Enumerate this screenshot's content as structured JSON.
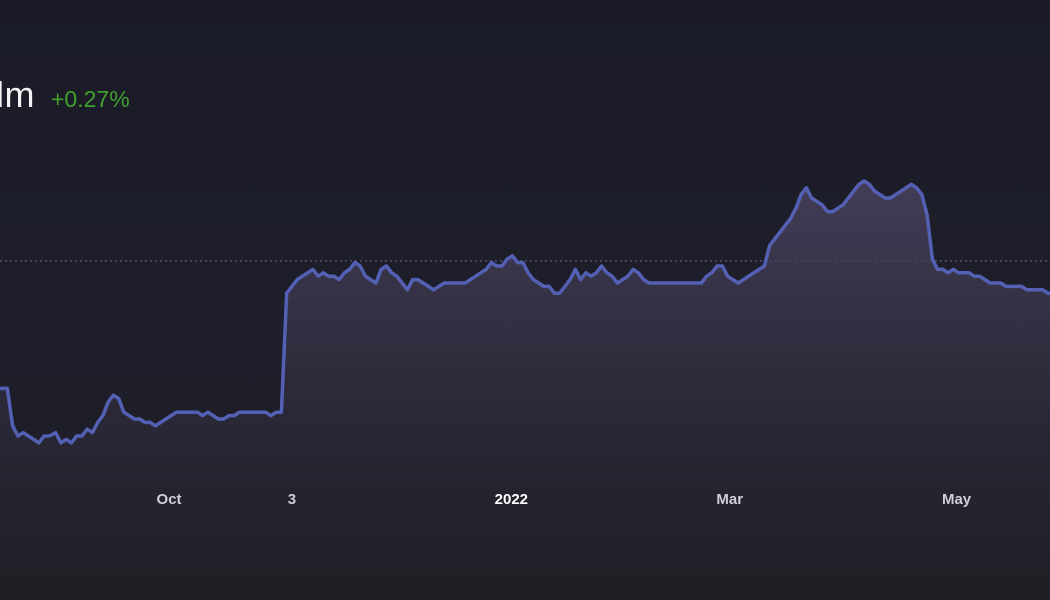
{
  "header": {
    "value_text": "lm",
    "change_text": "+0.27%"
  },
  "colors": {
    "line": "#5460b4",
    "area_top": "#4a4360",
    "positive": "#3fa12c",
    "reference_line": "#6a6a90"
  },
  "chart_data": {
    "type": "area",
    "title": "",
    "xlabel": "",
    "ylabel": "",
    "x_tick_labels": [
      "Oct",
      "3",
      "2022",
      "Mar",
      "May"
    ],
    "emphasized_tick": "2022",
    "ylim": [
      0,
      100
    ],
    "reference_line_value": 61.5,
    "reference_line_style": "dotted",
    "grid": false,
    "x": [
      0,
      0.7,
      1.2,
      1.7,
      2.2,
      2.7,
      3.2,
      3.7,
      4.2,
      4.7,
      5.3,
      5.8,
      6.3,
      6.8,
      7.3,
      7.8,
      8.3,
      8.8,
      9.3,
      9.8,
      10.3,
      10.8,
      11.3,
      11.8,
      12.3,
      12.8,
      13.3,
      13.8,
      14.3,
      14.8,
      15.3,
      15.8,
      16.3,
      16.8,
      17.3,
      17.8,
      18.3,
      18.8,
      19.3,
      19.8,
      20.3,
      20.8,
      21.3,
      21.8,
      22.3,
      22.8,
      23.3,
      23.8,
      24.3,
      24.8,
      25.3,
      25.8,
      26.3,
      26.8,
      27.3,
      27.8,
      28.3,
      28.8,
      29.3,
      29.8,
      30.3,
      30.8,
      31.3,
      31.8,
      32.3,
      32.8,
      33.3,
      33.8,
      34.3,
      34.8,
      35.3,
      35.8,
      36.3,
      36.8,
      37.3,
      37.8,
      38.3,
      38.8,
      39.3,
      39.8,
      40.3,
      40.8,
      41.3,
      41.8,
      42.3,
      42.8,
      43.3,
      43.8,
      44.3,
      44.8,
      45.3,
      45.8,
      46.3,
      46.8,
      47.3,
      47.8,
      48.3,
      48.8,
      49.3,
      49.8,
      50.3,
      50.8,
      51.3,
      51.8,
      52.3,
      52.8,
      53.3,
      53.8,
      54.3,
      54.8,
      55.3,
      55.8,
      56.3,
      56.8,
      57.3,
      57.8,
      58.3,
      58.8,
      59.3,
      59.8,
      60.3,
      60.8,
      61.3,
      61.8,
      62.3,
      62.8,
      63.3,
      63.8,
      64.3,
      64.8,
      65.3,
      65.8,
      66.3,
      66.8,
      67.3,
      67.8,
      68.3,
      68.8,
      69.3,
      69.8,
      70.3,
      70.8,
      71.3,
      71.8,
      72.3,
      72.8,
      73.3,
      73.8,
      74.3,
      74.8,
      75.3,
      75.8,
      76.3,
      76.8,
      77.3,
      77.8,
      78.3,
      78.8,
      79.3,
      79.8,
      80.3,
      80.8,
      81.3,
      81.8,
      82.3,
      82.8,
      83.3,
      83.8,
      84.3,
      84.8,
      85.3,
      85.8,
      86.3,
      86.8,
      87.3,
      87.8,
      88.3,
      88.8,
      89.3,
      89.8,
      90.3,
      90.8,
      91.3,
      91.8,
      92.3,
      92.8,
      93.3,
      93.8,
      94.3,
      94.8,
      95.3,
      95.8,
      96.3,
      96.8,
      97.3,
      97.8,
      98.3,
      98.8,
      99.3,
      99.8,
      100
    ],
    "tick_positions": [
      16.1,
      27.8,
      48.7,
      69.5,
      91.1
    ],
    "series": [
      {
        "values": [
          24,
          24,
          13,
          10,
          11,
          10,
          9,
          8,
          10,
          10,
          11,
          8,
          9,
          8,
          10,
          10,
          12,
          11,
          14,
          16,
          20,
          22,
          21,
          17,
          16,
          15,
          15,
          14,
          14,
          13,
          14,
          15,
          16,
          17,
          17,
          17,
          17,
          17,
          16,
          17,
          16,
          15,
          15,
          16,
          16,
          17,
          17,
          17,
          17,
          17,
          17,
          16,
          17,
          17,
          52,
          54,
          56,
          57,
          58,
          59,
          57,
          58,
          57,
          57,
          56,
          58,
          59,
          61,
          60,
          57,
          56,
          55,
          59,
          60,
          58,
          57,
          55,
          53,
          56,
          56,
          55,
          54,
          53,
          54,
          55,
          55,
          55,
          55,
          55,
          56,
          57,
          58,
          59,
          61,
          60,
          60,
          62,
          63,
          61,
          61,
          58,
          56,
          55,
          54,
          54,
          52,
          52,
          54,
          56,
          59,
          56,
          58,
          57,
          58,
          60,
          58,
          57,
          55,
          56,
          57,
          59,
          58,
          56,
          55,
          55,
          55,
          55,
          55,
          55,
          55,
          55,
          55,
          55,
          55,
          57,
          58,
          60,
          60,
          57,
          56,
          55,
          56,
          57,
          58,
          59,
          60,
          66,
          68,
          70,
          72,
          74,
          77,
          81,
          83,
          80,
          79,
          78,
          76,
          76,
          77,
          78,
          80,
          82,
          84,
          85,
          84,
          82,
          81,
          80,
          80,
          81,
          82,
          83,
          84,
          83,
          81,
          75,
          62,
          59,
          59,
          58,
          59,
          58,
          58,
          58,
          57,
          57,
          56,
          55,
          55,
          55,
          54,
          54,
          54,
          54,
          53,
          53,
          53,
          53,
          52,
          52
        ]
      }
    ]
  }
}
